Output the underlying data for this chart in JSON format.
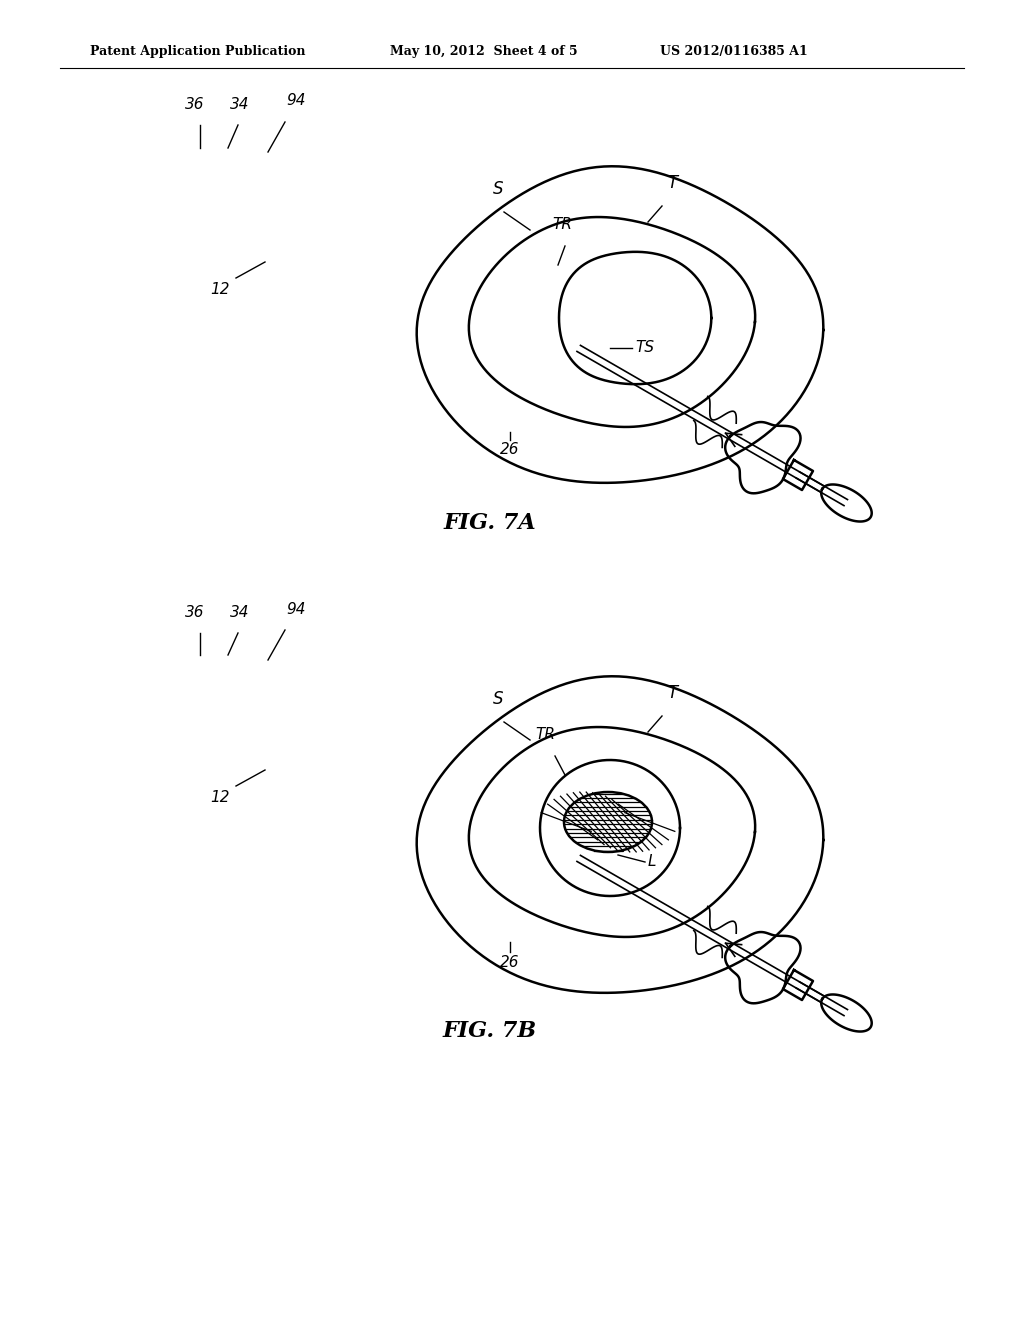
{
  "bg_color": "#ffffff",
  "line_color": "#000000",
  "header_left": "Patent Application Publication",
  "header_mid": "May 10, 2012  Sheet 4 of 5",
  "header_right": "US 2012/0116385 A1",
  "fig7a_label": "FIG. 7A",
  "fig7b_label": "FIG. 7B"
}
